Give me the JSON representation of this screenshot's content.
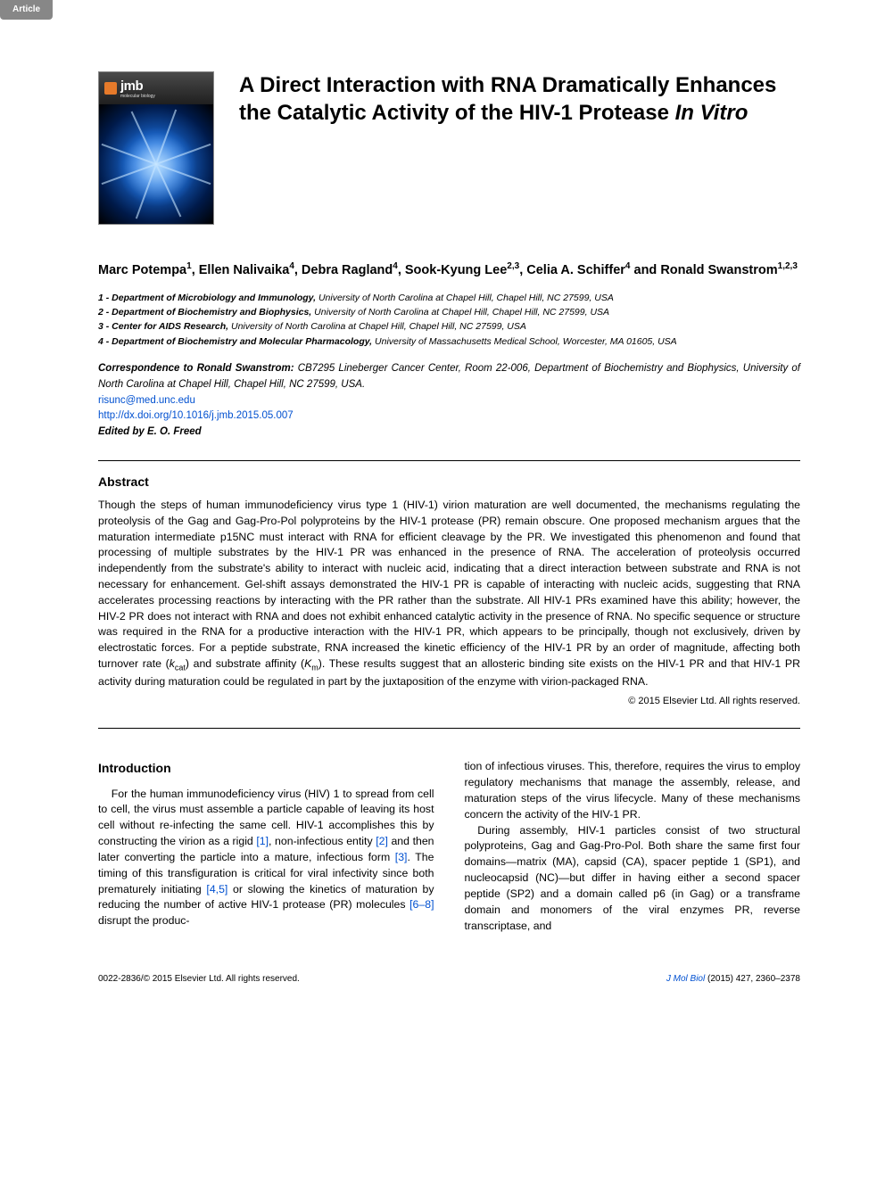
{
  "tag": "Article",
  "title_plain": "A Direct Interaction with RNA Dramatically Enhances the Catalytic Activity of the HIV-1 Protease ",
  "title_italic": "In Vitro",
  "authors_html": "Marc Potempa<sup>1</sup>, Ellen Nalivaika<sup>4</sup>, Debra Ragland<sup>4</sup>, Sook-Kyung Lee<sup>2,3</sup>, Celia A. Schiffer<sup>4</sup> and Ronald Swanstrom<sup>1,2,3</sup>",
  "affiliations": [
    {
      "n": "1",
      "dept": "Department of Microbiology and Immunology,",
      "rest": " University of North Carolina at Chapel Hill, Chapel Hill, NC 27599, USA"
    },
    {
      "n": "2",
      "dept": "Department of Biochemistry and Biophysics,",
      "rest": " University of North Carolina at Chapel Hill, Chapel Hill, NC 27599, USA"
    },
    {
      "n": "3",
      "dept": "Center for AIDS Research,",
      "rest": " University of North Carolina at Chapel Hill, Chapel Hill, NC 27599, USA"
    },
    {
      "n": "4",
      "dept": "Department of Biochemistry and Molecular Pharmacology,",
      "rest": " University of Massachusetts Medical School, Worcester, MA 01605, USA"
    }
  ],
  "correspondence": {
    "label": "Correspondence to Ronald Swanstrom:",
    "text": " CB7295 Lineberger Cancer Center, Room 22-006, Department of Biochemistry and Biophysics, University of North Carolina at Chapel Hill, Chapel Hill, NC 27599, USA.",
    "email": "risunc@med.unc.edu",
    "doi": "http://dx.doi.org/10.1016/j.jmb.2015.05.007",
    "edited": "Edited by E. O. Freed"
  },
  "abstract": {
    "heading": "Abstract",
    "body_html": "Though the steps of human immunodeficiency virus type 1 (HIV-1) virion maturation are well documented, the mechanisms regulating the proteolysis of the Gag and Gag-Pro-Pol polyproteins by the HIV-1 protease (PR) remain obscure. One proposed mechanism argues that the maturation intermediate p15NC must interact with RNA for efficient cleavage by the PR. We investigated this phenomenon and found that processing of multiple substrates by the HIV-1 PR was enhanced in the presence of RNA. The acceleration of proteolysis occurred independently from the substrate's ability to interact with nucleic acid, indicating that a direct interaction between substrate and RNA is not necessary for enhancement. Gel-shift assays demonstrated the HIV-1 PR is capable of interacting with nucleic acids, suggesting that RNA accelerates processing reactions by interacting with the PR rather than the substrate. All HIV-1 PRs examined have this ability; however, the HIV-2 PR does not interact with RNA and does not exhibit enhanced catalytic activity in the presence of RNA. No specific sequence or structure was required in the RNA for a productive interaction with the HIV-1 PR, which appears to be principally, though not exclusively, driven by electrostatic forces. For a peptide substrate, RNA increased the kinetic efficiency of the HIV-1 PR by an order of magnitude, affecting both turnover rate (<span class=\"ital\">k</span><sub>cat</sub>) and substrate affinity (<span class=\"ital\">K</span><sub>m</sub>). These results suggest that an allosteric binding site exists on the HIV-1 PR and that HIV-1 PR activity during maturation could be regulated in part by the juxtaposition of the enzyme with virion-packaged RNA.",
    "copyright": "© 2015 Elsevier Ltd. All rights reserved."
  },
  "introduction": {
    "heading": "Introduction",
    "col1_html": "For the human immunodeficiency virus (HIV) 1 to spread from cell to cell, the virus must assemble a particle capable of leaving its host cell without re-infecting the same cell. HIV-1 accomplishes this by constructing the virion as a rigid <span class=\"reflink\">[1]</span>, non-infectious entity <span class=\"reflink\">[2]</span> and then later converting the particle into a mature, infectious form <span class=\"reflink\">[3]</span>. The timing of this transfiguration is critical for viral infectivity since both prematurely initiating <span class=\"reflink\">[4,5]</span> or slowing the kinetics of maturation by reducing the number of active HIV-1 protease (PR) molecules <span class=\"reflink\">[6–8]</span> disrupt the produc-",
    "col2_p1": "tion of infectious viruses. This, therefore, requires the virus to employ regulatory mechanisms that manage the assembly, release, and maturation steps of the virus lifecycle. Many of these mechanisms concern the activity of the HIV-1 PR.",
    "col2_p2": "During assembly, HIV-1 particles consist of two structural polyproteins, Gag and Gag-Pro-Pol. Both share the same first four domains—matrix (MA), capsid (CA), spacer peptide 1 (SP1), and nucleocapsid (NC)—but differ in having either a second spacer peptide (SP2) and a domain called p6 (in Gag) or a transframe domain and monomers of the viral enzymes PR, reverse transcriptase, and"
  },
  "footer": {
    "left": "0022-2836/© 2015 Elsevier Ltd. All rights reserved.",
    "right_journal": "J Mol Biol",
    "right_rest": " (2015) 427, 2360–2378"
  },
  "journal_logo": {
    "abbr": "jmb",
    "sub": "molecular biology"
  },
  "colors": {
    "tag_bg": "#878787",
    "link": "#0050d0",
    "text": "#000000",
    "cover_gradient_outer": "#001a4a",
    "cover_gradient_inner": "#7ab8ff"
  }
}
